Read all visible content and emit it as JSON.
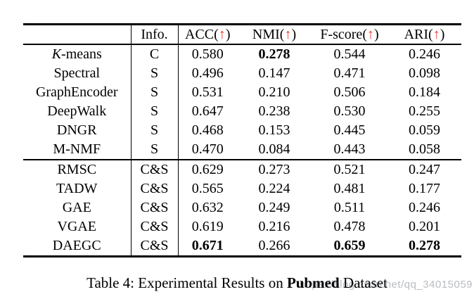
{
  "table": {
    "info_header": "Info.",
    "paren_open": "(",
    "paren_close": ")",
    "arrow": "↑",
    "arrow_color": "#e8372c",
    "metric_headers": [
      {
        "name": "ACC"
      },
      {
        "name": "NMI"
      },
      {
        "name": "F-score"
      },
      {
        "name": "ARI"
      }
    ],
    "groups": [
      {
        "rows": [
          {
            "name": "K-means",
            "math_italic_name": true,
            "info": "C",
            "values": [
              "0.580",
              "0.278",
              "0.544",
              "0.246"
            ],
            "bold_mask": [
              false,
              true,
              false,
              false
            ]
          },
          {
            "name": "Spectral",
            "math_italic_name": false,
            "info": "S",
            "values": [
              "0.496",
              "0.147",
              "0.471",
              "0.098"
            ],
            "bold_mask": [
              false,
              false,
              false,
              false
            ]
          },
          {
            "name": "GraphEncoder",
            "math_italic_name": false,
            "info": "S",
            "values": [
              "0.531",
              "0.210",
              "0.506",
              "0.184"
            ],
            "bold_mask": [
              false,
              false,
              false,
              false
            ]
          },
          {
            "name": "DeepWalk",
            "math_italic_name": false,
            "info": "S",
            "values": [
              "0.647",
              "0.238",
              "0.530",
              "0.255"
            ],
            "bold_mask": [
              false,
              false,
              false,
              false
            ]
          },
          {
            "name": "DNGR",
            "math_italic_name": false,
            "info": "S",
            "values": [
              "0.468",
              "0.153",
              "0.445",
              "0.059"
            ],
            "bold_mask": [
              false,
              false,
              false,
              false
            ]
          },
          {
            "name": "M-NMF",
            "math_italic_name": false,
            "info": "S",
            "values": [
              "0.470",
              "0.084",
              "0.443",
              "0.058"
            ],
            "bold_mask": [
              false,
              false,
              false,
              false
            ]
          }
        ]
      },
      {
        "rows": [
          {
            "name": "RMSC",
            "math_italic_name": false,
            "info": "C&S",
            "values": [
              "0.629",
              "0.273",
              "0.521",
              "0.247"
            ],
            "bold_mask": [
              false,
              false,
              false,
              false
            ]
          },
          {
            "name": "TADW",
            "math_italic_name": false,
            "info": "C&S",
            "values": [
              "0.565",
              "0.224",
              "0.481",
              "0.177"
            ],
            "bold_mask": [
              false,
              false,
              false,
              false
            ]
          },
          {
            "name": "GAE",
            "math_italic_name": false,
            "info": "C&S",
            "values": [
              "0.632",
              "0.249",
              "0.511",
              "0.246"
            ],
            "bold_mask": [
              false,
              false,
              false,
              false
            ]
          },
          {
            "name": "VGAE",
            "math_italic_name": false,
            "info": "C&S",
            "values": [
              "0.619",
              "0.216",
              "0.478",
              "0.201"
            ],
            "bold_mask": [
              false,
              false,
              false,
              false
            ]
          },
          {
            "name": "DAEGC",
            "math_italic_name": false,
            "info": "C&S",
            "values": [
              "0.671",
              "0.266",
              "0.659",
              "0.278"
            ],
            "bold_mask": [
              true,
              false,
              true,
              true
            ]
          }
        ]
      }
    ]
  },
  "caption": {
    "prefix": "Table 4: Experimental Results on ",
    "dataset": "Pubmed",
    "suffix": " Dataset"
  },
  "watermark": {
    "text": "https://blog.csdn.net/qq_34015059",
    "color": "#b9bdc3"
  }
}
